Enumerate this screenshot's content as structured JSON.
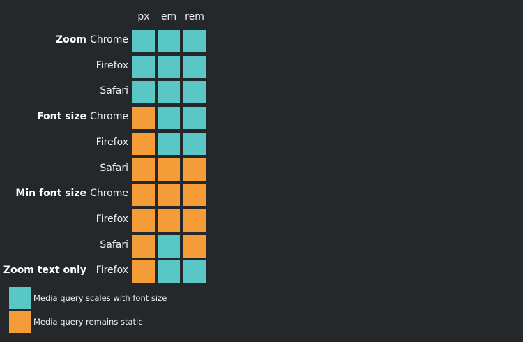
{
  "colors": {
    "background": "#25282b",
    "scales": "#59c7c6",
    "static": "#f39c38"
  },
  "chart_data": {
    "type": "heatmap",
    "columns": [
      "px",
      "em",
      "rem"
    ],
    "rows": [
      {
        "group": "Zoom",
        "browser": "Chrome",
        "values": [
          "scales",
          "scales",
          "scales"
        ]
      },
      {
        "group": "",
        "browser": "Firefox",
        "values": [
          "scales",
          "scales",
          "scales"
        ]
      },
      {
        "group": "",
        "browser": "Safari",
        "values": [
          "scales",
          "scales",
          "scales"
        ]
      },
      {
        "group": "Font size",
        "browser": "Chrome",
        "values": [
          "static",
          "scales",
          "scales"
        ]
      },
      {
        "group": "",
        "browser": "Firefox",
        "values": [
          "static",
          "scales",
          "scales"
        ]
      },
      {
        "group": "",
        "browser": "Safari",
        "values": [
          "static",
          "static",
          "static"
        ]
      },
      {
        "group": "Min font size",
        "browser": "Chrome",
        "values": [
          "static",
          "static",
          "static"
        ]
      },
      {
        "group": "",
        "browser": "Firefox",
        "values": [
          "static",
          "static",
          "static"
        ]
      },
      {
        "group": "",
        "browser": "Safari",
        "values": [
          "static",
          "scales",
          "static"
        ]
      },
      {
        "group": "Zoom text only",
        "browser": "Firefox",
        "values": [
          "static",
          "scales",
          "scales"
        ]
      }
    ],
    "legend": [
      {
        "key": "scales",
        "label": "Media query scales with font size"
      },
      {
        "key": "static",
        "label": "Media query remains static"
      }
    ]
  }
}
